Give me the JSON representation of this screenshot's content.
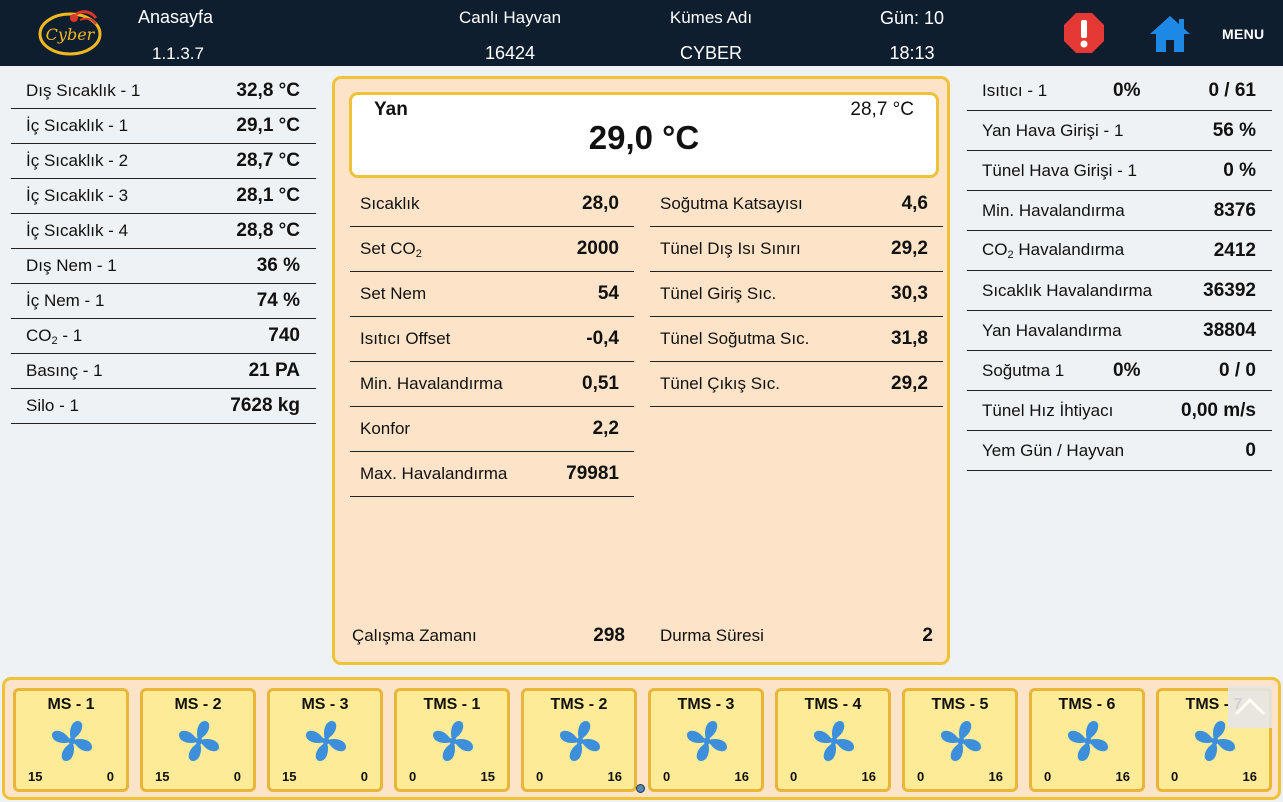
{
  "header": {
    "page_title": "Anasayfa",
    "version": "1.1.3.7",
    "live_animals_label": "Canlı Hayvan",
    "live_animals_value": "16424",
    "coop_name_label": "Kümes Adı",
    "coop_name_value": "CYBER",
    "day_label": "Gün: 10",
    "time": "18:13",
    "menu_label": "MENU",
    "logo_text": "Cyber",
    "alert_color": "#e53935",
    "home_color": "#1e88e5"
  },
  "sensors": [
    {
      "label": "Dış Sıcaklık - 1",
      "value": "32,8 °C"
    },
    {
      "label": "İç Sıcaklık - 1",
      "value": "29,1 °C"
    },
    {
      "label": "İç Sıcaklık - 2",
      "value": "28,7 °C"
    },
    {
      "label": "İç Sıcaklık - 3",
      "value": "28,1 °C"
    },
    {
      "label": "İç Sıcaklık - 4",
      "value": "28,8 °C"
    },
    {
      "label": "Dış Nem - 1",
      "value": "36 %"
    },
    {
      "label": "İç Nem - 1",
      "value": "74 %"
    },
    {
      "label_pre": "CO",
      "label_sub": "2",
      "label_post": " - 1",
      "value": "740"
    },
    {
      "label": "Basınç - 1",
      "value": "21 PA"
    },
    {
      "label": "Silo - 1",
      "value": "7628 kg"
    }
  ],
  "center": {
    "yan_label": "Yan",
    "yan_value": "29,0 °C",
    "yan_secondary": "28,7 °C",
    "left_params": [
      {
        "label": "Sıcaklık",
        "value": "28,0"
      },
      {
        "label_pre": "Set CO",
        "label_sub": "2",
        "label_post": "",
        "value": "2000"
      },
      {
        "label": "Set Nem",
        "value": "54"
      },
      {
        "label": "Isıtıcı Offset",
        "value": "-0,4"
      },
      {
        "label": "Min. Havalandırma",
        "value": "0,51"
      },
      {
        "label": "Konfor",
        "value": "2,2"
      },
      {
        "label": "Max. Havalandırma",
        "value": "79981"
      }
    ],
    "right_params": [
      {
        "label": "Soğutma Katsayısı",
        "value": "4,6"
      },
      {
        "label": "Tünel Dış Isı Sınırı",
        "value": "29,2"
      },
      {
        "label": "Tünel Giriş Sıc.",
        "value": "30,3"
      },
      {
        "label": "Tünel Soğutma Sıc.",
        "value": "31,8"
      },
      {
        "label": "Tünel Çıkış Sıc.",
        "value": "29,2"
      }
    ],
    "run_time_label": "Çalışma Zamanı",
    "run_time_value": "298",
    "stop_time_label": "Durma Süresi",
    "stop_time_value": "2"
  },
  "status": [
    {
      "label": "Isıtıcı - 1",
      "mid": "0%",
      "value": "0 / 61"
    },
    {
      "label": "Yan Hava Girişi - 1",
      "mid": "",
      "value": "56 %"
    },
    {
      "label": "Tünel Hava Girişi - 1",
      "mid": "",
      "value": "0 %"
    },
    {
      "label": "Min. Havalandırma",
      "mid": "",
      "value": "8376"
    },
    {
      "label_pre": "CO",
      "label_sub": "2",
      "label_post": " Havalandırma",
      "mid": "",
      "value": "2412"
    },
    {
      "label": "Sıcaklık Havalandırma",
      "mid": "",
      "value": "36392"
    },
    {
      "label": "Yan Havalandırma",
      "mid": "",
      "value": "38804"
    },
    {
      "label": "Soğutma 1",
      "mid": "0%",
      "value": "0 / 0"
    },
    {
      "label": "Tünel Hız İhtiyacı",
      "mid": "",
      "value": "0,00 m/s"
    },
    {
      "label": "Yem Gün / Hayvan",
      "mid": "",
      "value": "0"
    }
  ],
  "fans": [
    {
      "name": "MS - 1",
      "left": "15",
      "right": "0"
    },
    {
      "name": "MS - 2",
      "left": "15",
      "right": "0"
    },
    {
      "name": "MS - 3",
      "left": "15",
      "right": "0"
    },
    {
      "name": "TMS - 1",
      "left": "0",
      "right": "15"
    },
    {
      "name": "TMS - 2",
      "left": "0",
      "right": "16"
    },
    {
      "name": "TMS - 3",
      "left": "0",
      "right": "16"
    },
    {
      "name": "TMS - 4",
      "left": "0",
      "right": "16"
    },
    {
      "name": "TMS - 5",
      "left": "0",
      "right": "16"
    },
    {
      "name": "TMS - 6",
      "left": "0",
      "right": "16"
    },
    {
      "name": "TMS - 7",
      "left": "0",
      "right": "16"
    }
  ],
  "fan_color": "#3d8fdc"
}
